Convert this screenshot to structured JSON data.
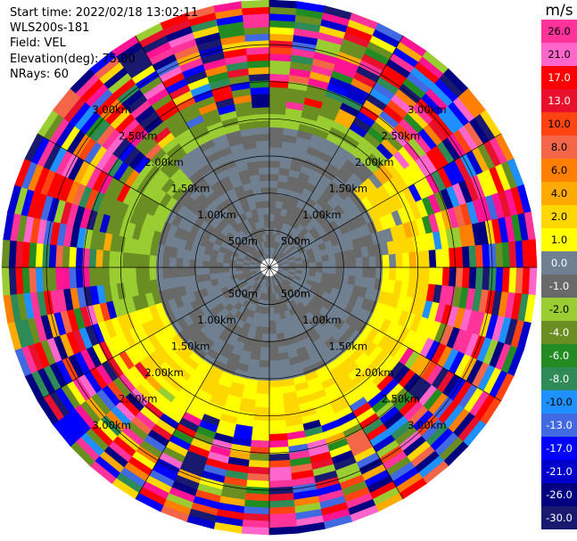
{
  "info": {
    "start_time": "Start time: 2022/02/18 13:02:11",
    "station": "WLS200s-181",
    "field": "Field: VEL",
    "elevation": "Elevation(deg): 75.00",
    "nrays": "NRays: 60"
  },
  "chart_data": {
    "type": "ppi",
    "field": "VEL",
    "units": "m/s",
    "nrays": 60,
    "elevation_deg": 75.0,
    "range_rings_km": [
      0.5,
      1.0,
      1.5,
      2.0,
      2.5,
      3.0
    ],
    "range_labels": [
      "500m",
      "1.00km",
      "1.50km",
      "2.00km",
      "2.50km",
      "3.00km"
    ],
    "max_range_km": 3.6,
    "colorbar": {
      "label": "m/s",
      "ticks": [
        "26.0",
        "21.0",
        "17.0",
        "13.0",
        "10.0",
        "8.0",
        "6.0",
        "4.0",
        "2.0",
        "1.0",
        "0.0",
        "-1.0",
        "-2.0",
        "-4.0",
        "-6.0",
        "-8.0",
        "-10.0",
        "-13.0",
        "-17.0",
        "-21.0",
        "-26.0",
        "-30.0"
      ],
      "colors": [
        "#ff3399",
        "#ff66cc",
        "#ff0000",
        "#e8102c",
        "#ff4411",
        "#f36648",
        "#ff7f00",
        "#ffaa00",
        "#ffd700",
        "#ffff00",
        "#708090",
        "#696969",
        "#9acd32",
        "#6b8e23",
        "#228b22",
        "#2e8b57",
        "#1e90ff",
        "#4169e1",
        "#0000ff",
        "#0000cd",
        "#000080",
        "#191970"
      ]
    }
  }
}
